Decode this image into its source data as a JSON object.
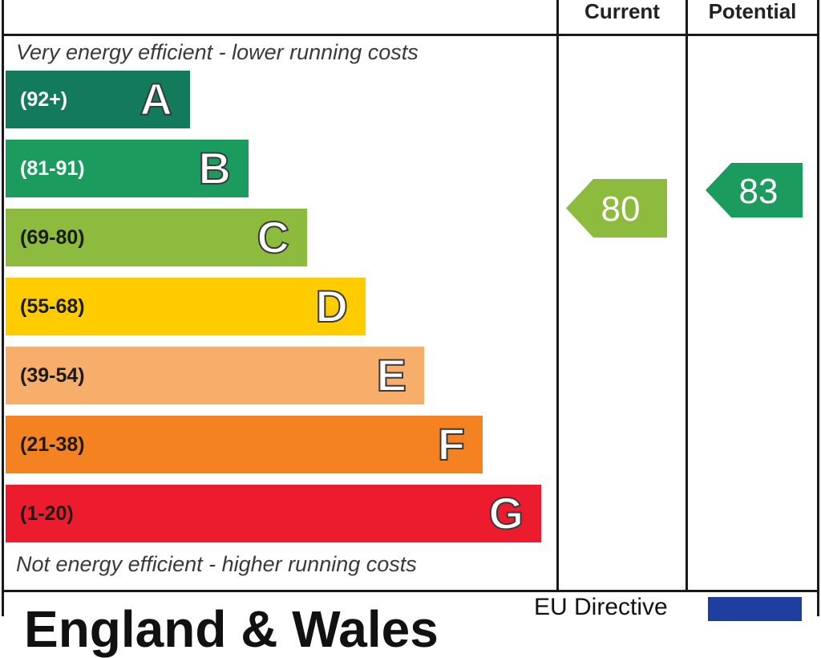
{
  "header": {
    "current_label": "Current",
    "potential_label": "Potential"
  },
  "captions": {
    "top": "Very energy efficient - lower running costs",
    "bottom": "Not energy efficient - higher running costs"
  },
  "chart_data": {
    "type": "bar",
    "bands": [
      {
        "letter": "A",
        "range": "(92+)",
        "color": "#137a5c",
        "range_color": "#ffffff"
      },
      {
        "letter": "B",
        "range": "(81-91)",
        "color": "#1c9b5f",
        "range_color": "#ffffff"
      },
      {
        "letter": "C",
        "range": "(69-80)",
        "color": "#8cbb3d",
        "range_color": "#1a1a1a"
      },
      {
        "letter": "D",
        "range": "(55-68)",
        "color": "#ffcc00",
        "range_color": "#1a1a1a"
      },
      {
        "letter": "E",
        "range": "(39-54)",
        "color": "#f7ae6a",
        "range_color": "#1a1a1a"
      },
      {
        "letter": "F",
        "range": "(21-38)",
        "color": "#f58220",
        "range_color": "#1a1a1a"
      },
      {
        "letter": "G",
        "range": "(1-20)",
        "color": "#ec1c2e",
        "range_color": "#1a1a1a"
      }
    ],
    "ratings": {
      "current": {
        "value": 80,
        "band": "C",
        "color": "#8cbb3d"
      },
      "potential": {
        "value": 83,
        "band": "B",
        "color": "#1c9b5f"
      }
    }
  },
  "footer": {
    "title": "England & Wales",
    "eu_label": "EU Directive"
  }
}
